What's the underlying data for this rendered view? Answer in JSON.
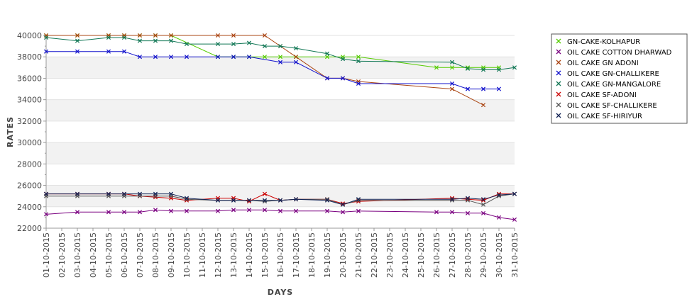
{
  "chart_data": {
    "type": "line",
    "title": "",
    "xlabel": "DAYS",
    "ylabel": "RATES",
    "ylim": [
      22000,
      40000
    ],
    "yticks": [
      22000,
      24000,
      26000,
      28000,
      30000,
      32000,
      34000,
      36000,
      38000,
      40000
    ],
    "grid": "horizontal alternating bands",
    "legend_position": "right",
    "categories": [
      "01-10-2015",
      "02-10-2015",
      "03-10-2015",
      "04-10-2015",
      "05-10-2015",
      "06-10-2015",
      "07-10-2015",
      "08-10-2015",
      "09-10-2015",
      "10-10-2015",
      "11-10-2015",
      "12-10-2015",
      "13-10-2015",
      "14-10-2015",
      "15-10-2015",
      "16-10-2015",
      "17-10-2015",
      "18-10-2015",
      "19-10-2015",
      "20-10-2015",
      "21-10-2015",
      "22-10-2015",
      "23-10-2015",
      "24-10-2015",
      "25-10-2015",
      "26-10-2015",
      "27-10-2015",
      "28-10-2015",
      "29-10-2015",
      "30-10-2015",
      "31-10-2015"
    ],
    "series": [
      {
        "name": "GN-CAKE-KOLHAPUR",
        "color": "#55cc00",
        "values": [
          40000,
          null,
          40000,
          null,
          40000,
          40000,
          40000,
          40000,
          40000,
          null,
          null,
          38000,
          38000,
          38000,
          38000,
          38000,
          38000,
          null,
          38000,
          38000,
          38000,
          null,
          null,
          null,
          null,
          37000,
          37000,
          37000,
          37000,
          37000,
          null
        ]
      },
      {
        "name": "OIL CAKE COTTON DHARWAD",
        "color": "#7a0080",
        "values": [
          23300,
          null,
          23500,
          null,
          23500,
          23500,
          23500,
          23700,
          23600,
          23600,
          null,
          23600,
          23700,
          23700,
          23700,
          23600,
          23600,
          null,
          23600,
          23500,
          23600,
          null,
          null,
          null,
          null,
          23500,
          23500,
          23400,
          23400,
          23000,
          22800
        ]
      },
      {
        "name": "OIL CAKE GN ADONI",
        "color": "#aa4411",
        "values": [
          40000,
          null,
          40000,
          null,
          40000,
          40000,
          40000,
          40000,
          40000,
          null,
          null,
          40000,
          40000,
          null,
          40000,
          39000,
          38000,
          null,
          36000,
          36000,
          35700,
          null,
          null,
          null,
          null,
          null,
          35000,
          null,
          33500,
          null,
          null
        ]
      },
      {
        "name": "OIL CAKE GN-CHALLIKERE",
        "color": "#1111cc",
        "values": [
          38500,
          null,
          38500,
          null,
          38500,
          38500,
          38000,
          38000,
          38000,
          38000,
          null,
          38000,
          38000,
          38000,
          null,
          37500,
          37500,
          null,
          36000,
          36000,
          35500,
          null,
          null,
          null,
          null,
          null,
          35500,
          35000,
          35000,
          35000,
          null
        ]
      },
      {
        "name": "OIL CAKE GN-MANGALORE",
        "color": "#117755",
        "values": [
          39800,
          null,
          39500,
          null,
          39800,
          39800,
          39500,
          39500,
          39500,
          39200,
          null,
          39200,
          39200,
          39300,
          39000,
          39000,
          38800,
          null,
          38300,
          37800,
          37600,
          null,
          null,
          null,
          null,
          null,
          37500,
          36900,
          36800,
          36800,
          37000
        ]
      },
      {
        "name": "OIL CAKE SF-ADONI",
        "color": "#cc0000",
        "values": [
          25200,
          null,
          25200,
          null,
          25200,
          25200,
          25000,
          24900,
          24800,
          24600,
          null,
          24800,
          24800,
          24500,
          25200,
          24600,
          24700,
          null,
          24700,
          24300,
          24500,
          null,
          null,
          null,
          null,
          null,
          24800,
          24700,
          24600,
          25200,
          25200
        ]
      },
      {
        "name": "OIL CAKE SF-CHALLIKERE",
        "color": "#555555",
        "values": [
          25000,
          null,
          25000,
          null,
          25000,
          25000,
          25000,
          25000,
          25000,
          24700,
          null,
          24600,
          24600,
          24600,
          24500,
          24600,
          24700,
          null,
          24700,
          24200,
          24600,
          null,
          null,
          null,
          null,
          null,
          24600,
          24600,
          24200,
          25000,
          25200
        ]
      },
      {
        "name": "OIL CAKE SF-HIRIYUR",
        "color": "#112255",
        "values": [
          25200,
          null,
          25200,
          null,
          25200,
          25200,
          25200,
          25200,
          25200,
          24800,
          null,
          24600,
          24600,
          24600,
          24600,
          24600,
          24700,
          null,
          24600,
          24200,
          24700,
          null,
          null,
          null,
          null,
          null,
          24700,
          24800,
          24700,
          25100,
          25200
        ]
      }
    ]
  }
}
